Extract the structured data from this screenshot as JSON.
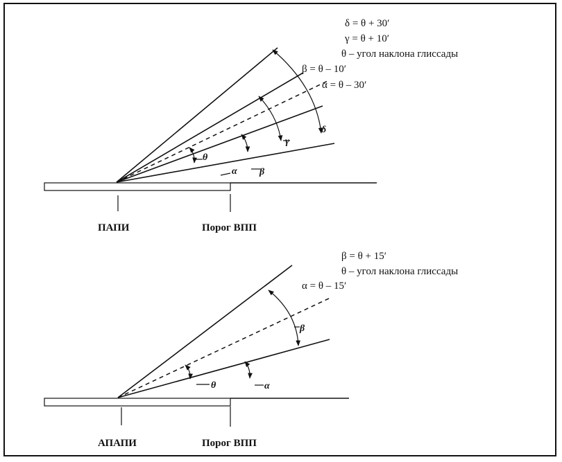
{
  "top_diagram": {
    "formulas": [
      "δ = θ + 30′",
      "γ = θ + 10′",
      "θ – угол наклона глиссады",
      "β = θ – 10′",
      "α = θ – 30′"
    ],
    "angle_labels": {
      "delta": "δ",
      "gamma": "γ",
      "theta": "θ",
      "alpha": "α",
      "beta": "β"
    },
    "caption_left": "ПАПИ",
    "caption_right": "Порог ВПП"
  },
  "bottom_diagram": {
    "formulas": [
      "β = θ + 15′",
      "θ – угол наклона глиссады",
      "α = θ – 15′"
    ],
    "angle_labels": {
      "beta": "β",
      "theta": "θ",
      "alpha": "α"
    },
    "caption_left": "АПАПИ",
    "caption_right": "Порог ВПП"
  }
}
